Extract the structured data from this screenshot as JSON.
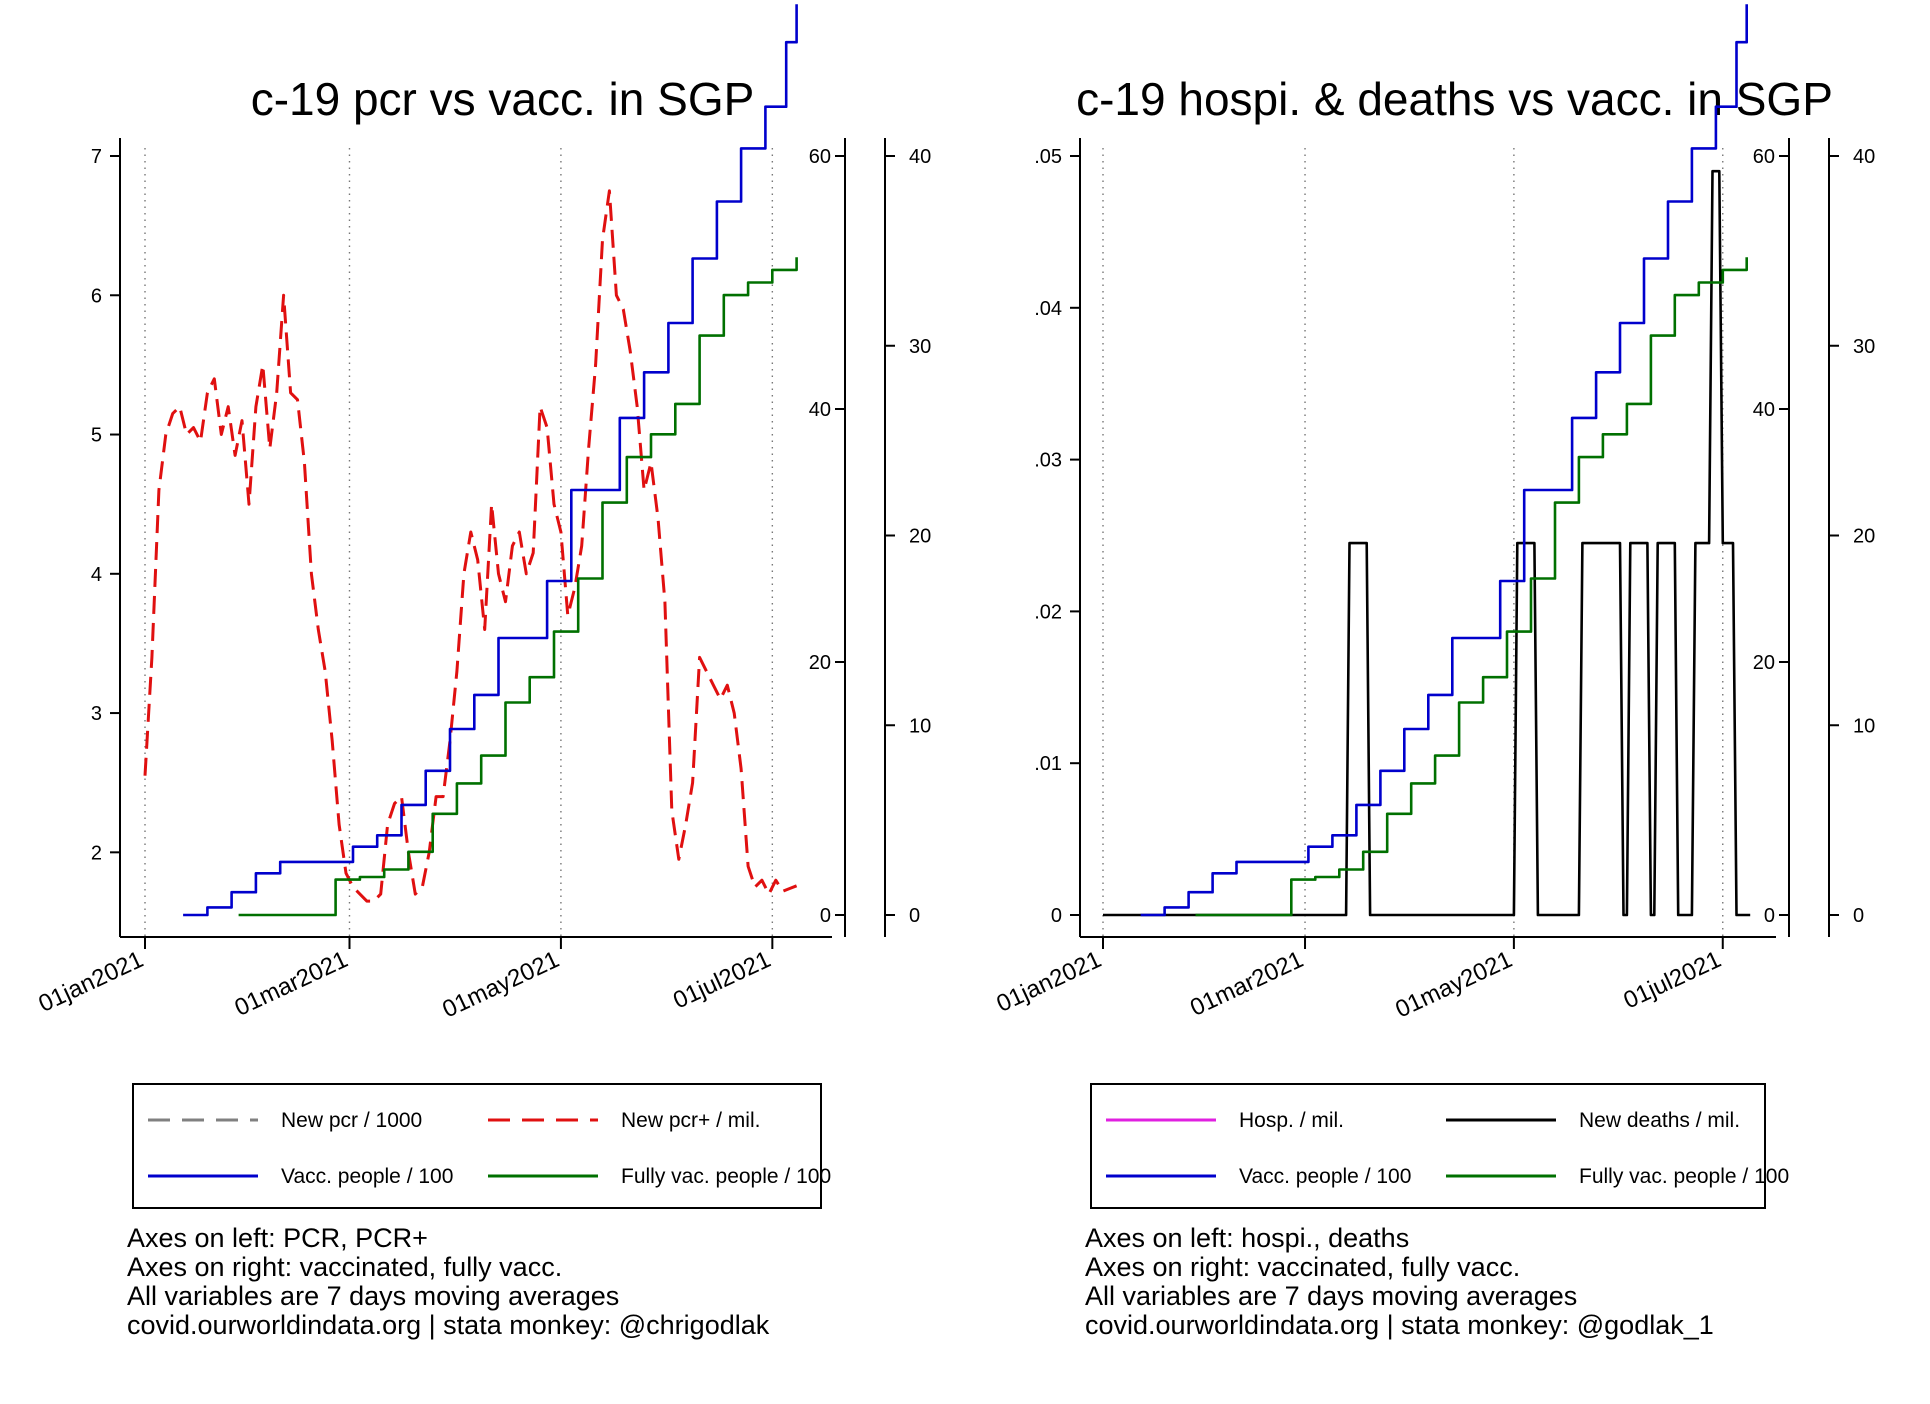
{
  "colors": {
    "pcr": "#808080",
    "pcr_pos": "#e01010",
    "vacc": "#0000cc",
    "fully": "#007000",
    "hosp": "#e020e0",
    "deaths": "#000000"
  },
  "chart_data": [
    {
      "type": "line",
      "title": "c-19 pcr vs vacc. in SGP",
      "x_axis": {
        "type": "date",
        "range": [
          "2021-01-01",
          "2021-07-11"
        ],
        "ticks": [
          "01jan2021",
          "01mar2021",
          "01may2021",
          "01jul2021"
        ],
        "tick_dates": [
          "2021-01-01",
          "2021-03-01",
          "2021-05-01",
          "2021-07-01"
        ],
        "vertical_gridlines": "dotted"
      },
      "y_left": {
        "range": [
          1.55,
          7
        ],
        "ticks": [
          "7",
          "6",
          "5",
          "4",
          "3",
          "2"
        ],
        "tick_values": [
          7,
          6,
          5,
          4,
          3,
          2
        ]
      },
      "y_right_inner": {
        "range": [
          0,
          60
        ],
        "ticks": [
          "60",
          "40",
          "20",
          "0"
        ],
        "tick_values": [
          60,
          40,
          20,
          0
        ]
      },
      "y_right_outer": {
        "range": [
          0,
          40
        ],
        "ticks": [
          "40",
          "30",
          "20",
          "10",
          "0"
        ],
        "tick_values": [
          40,
          30,
          20,
          10,
          0
        ]
      },
      "legend": {
        "placement": "bottom",
        "items": [
          {
            "key": "pcr",
            "label": "New pcr / 1000",
            "style": "dashed"
          },
          {
            "key": "pcr_pos",
            "label": "New pcr+ / mil.",
            "style": "dashed"
          },
          {
            "key": "vacc",
            "label": "Vacc. people / 100",
            "style": "solid"
          },
          {
            "key": "fully",
            "label": "Fully vac. people / 100",
            "style": "solid"
          }
        ]
      },
      "series": [
        {
          "key": "pcr_pos",
          "name": "New pcr+ / mil.",
          "axis": "left",
          "style": "dashed",
          "x": [
            "2021-01-01",
            "2021-01-03",
            "2021-01-05",
            "2021-01-07",
            "2021-01-09",
            "2021-01-11",
            "2021-01-13",
            "2021-01-15",
            "2021-01-17",
            "2021-01-19",
            "2021-01-21",
            "2021-01-23",
            "2021-01-25",
            "2021-01-27",
            "2021-01-29",
            "2021-01-31",
            "2021-02-02",
            "2021-02-04",
            "2021-02-06",
            "2021-02-08",
            "2021-02-10",
            "2021-02-12",
            "2021-02-14",
            "2021-02-16",
            "2021-02-18",
            "2021-02-20",
            "2021-02-22",
            "2021-02-24",
            "2021-02-26",
            "2021-02-28",
            "2021-03-02",
            "2021-03-04",
            "2021-03-06",
            "2021-03-08",
            "2021-03-10",
            "2021-03-12",
            "2021-03-14",
            "2021-03-16",
            "2021-03-18",
            "2021-03-20",
            "2021-03-22",
            "2021-03-24",
            "2021-03-26",
            "2021-03-28",
            "2021-03-30",
            "2021-04-01",
            "2021-04-03",
            "2021-04-05",
            "2021-04-07",
            "2021-04-09",
            "2021-04-11",
            "2021-04-13",
            "2021-04-15",
            "2021-04-17",
            "2021-04-19",
            "2021-04-21",
            "2021-04-23",
            "2021-04-25",
            "2021-04-27",
            "2021-04-29",
            "2021-05-01",
            "2021-05-03",
            "2021-05-05",
            "2021-05-07",
            "2021-05-09",
            "2021-05-11",
            "2021-05-13",
            "2021-05-15",
            "2021-05-17",
            "2021-05-19",
            "2021-05-21",
            "2021-05-23",
            "2021-05-25",
            "2021-05-27",
            "2021-05-29",
            "2021-05-31",
            "2021-06-02",
            "2021-06-04",
            "2021-06-06",
            "2021-06-08",
            "2021-06-10",
            "2021-06-12",
            "2021-06-14",
            "2021-06-16",
            "2021-06-18",
            "2021-06-20",
            "2021-06-22",
            "2021-06-24",
            "2021-06-26",
            "2021-06-28",
            "2021-06-30",
            "2021-07-02",
            "2021-07-04",
            "2021-07-06",
            "2021-07-08"
          ],
          "values": [
            2.55,
            3.4,
            4.6,
            5.0,
            5.15,
            5.2,
            5.0,
            5.05,
            4.95,
            5.3,
            5.4,
            5.0,
            5.2,
            4.85,
            5.1,
            4.5,
            5.2,
            5.5,
            4.9,
            5.3,
            6.0,
            5.3,
            5.25,
            4.8,
            4.0,
            3.6,
            3.3,
            2.8,
            2.2,
            1.85,
            1.75,
            1.7,
            1.65,
            1.65,
            1.7,
            2.2,
            2.35,
            2.4,
            2.0,
            1.7,
            1.75,
            2.0,
            2.4,
            2.4,
            2.8,
            3.3,
            4.0,
            4.3,
            4.1,
            3.6,
            4.5,
            4.0,
            3.8,
            4.2,
            4.3,
            4.0,
            4.15,
            5.2,
            5.05,
            4.5,
            4.3,
            3.7,
            3.9,
            4.2,
            4.9,
            5.5,
            6.4,
            6.75,
            6.0,
            5.9,
            5.6,
            5.2,
            4.6,
            4.8,
            4.4,
            3.8,
            2.3,
            1.95,
            2.2,
            2.5,
            3.4,
            3.3,
            3.2,
            3.1,
            3.2,
            3.0,
            2.6,
            1.9,
            1.75,
            1.8,
            1.7,
            1.8,
            1.72,
            1.74,
            1.76
          ]
        },
        {
          "key": "vacc",
          "name": "Vacc. people / 100",
          "axis": "right_outer",
          "style": "step",
          "x": [
            "2021-01-12",
            "2021-01-19",
            "2021-01-26",
            "2021-02-02",
            "2021-02-09",
            "2021-02-16",
            "2021-02-23",
            "2021-03-02",
            "2021-03-09",
            "2021-03-16",
            "2021-03-23",
            "2021-03-30",
            "2021-04-06",
            "2021-04-13",
            "2021-04-20",
            "2021-04-27",
            "2021-05-04",
            "2021-05-11",
            "2021-05-18",
            "2021-05-25",
            "2021-06-01",
            "2021-06-08",
            "2021-06-15",
            "2021-06-22",
            "2021-06-29",
            "2021-07-05",
            "2021-07-08"
          ],
          "values": [
            0,
            0.4,
            1.2,
            2.2,
            2.8,
            2.8,
            2.8,
            3.6,
            4.2,
            5.8,
            7.6,
            9.8,
            11.6,
            14.6,
            14.6,
            17.6,
            22.4,
            22.4,
            26.2,
            28.6,
            31.2,
            34.6,
            37.6,
            40.4,
            42.6,
            46.0,
            48.0
          ]
        },
        {
          "key": "fully",
          "name": "Fully vac. people / 100",
          "axis": "right_inner",
          "style": "step",
          "x": [
            "2021-01-28",
            "2021-02-04",
            "2021-02-11",
            "2021-02-18",
            "2021-02-25",
            "2021-03-04",
            "2021-03-11",
            "2021-03-18",
            "2021-03-25",
            "2021-04-01",
            "2021-04-08",
            "2021-04-15",
            "2021-04-22",
            "2021-04-29",
            "2021-05-06",
            "2021-05-13",
            "2021-05-20",
            "2021-05-27",
            "2021-06-03",
            "2021-06-10",
            "2021-06-17",
            "2021-06-24",
            "2021-07-01",
            "2021-07-08"
          ],
          "values": [
            0,
            0,
            0,
            0,
            2.8,
            3.0,
            3.6,
            5.0,
            8.0,
            10.4,
            12.6,
            16.8,
            18.8,
            22.4,
            26.6,
            32.6,
            36.2,
            38.0,
            40.4,
            45.8,
            49.0,
            50.0,
            51.0,
            52.0
          ]
        }
      ]
    },
    {
      "type": "line",
      "title": "c-19 hospi. & deaths vs vacc. in SGP",
      "x_axis": {
        "type": "date",
        "range": [
          "2021-01-01",
          "2021-07-11"
        ],
        "ticks": [
          "01jan2021",
          "01mar2021",
          "01may2021",
          "01jul2021"
        ],
        "tick_dates": [
          "2021-01-01",
          "2021-03-01",
          "2021-05-01",
          "2021-07-01"
        ],
        "vertical_gridlines": "dotted"
      },
      "y_left": {
        "range": [
          0,
          0.05
        ],
        "ticks": [
          ".05",
          ".04",
          ".03",
          ".02",
          ".01",
          "0"
        ],
        "tick_values": [
          0.05,
          0.04,
          0.03,
          0.02,
          0.01,
          0
        ]
      },
      "y_right_inner": {
        "range": [
          0,
          60
        ],
        "ticks": [
          "60",
          "40",
          "20",
          "0"
        ],
        "tick_values": [
          60,
          40,
          20,
          0
        ]
      },
      "y_right_outer": {
        "range": [
          0,
          40
        ],
        "ticks": [
          "40",
          "30",
          "20",
          "10",
          "0"
        ],
        "tick_values": [
          40,
          30,
          20,
          10,
          0
        ]
      },
      "legend": {
        "placement": "bottom",
        "items": [
          {
            "key": "hosp",
            "label": "Hosp. / mil.",
            "style": "solid"
          },
          {
            "key": "deaths",
            "label": "New deaths / mil.",
            "style": "solid"
          },
          {
            "key": "vacc",
            "label": "Vacc. people / 100",
            "style": "solid"
          },
          {
            "key": "fully",
            "label": "Fully vac. people / 100",
            "style": "solid"
          }
        ]
      },
      "series": [
        {
          "key": "deaths",
          "name": "New deaths / mil.",
          "axis": "left",
          "style": "solid",
          "x": [
            "2021-01-01",
            "2021-03-13",
            "2021-03-14",
            "2021-03-19",
            "2021-03-20",
            "2021-05-01",
            "2021-05-02",
            "2021-05-07",
            "2021-05-08",
            "2021-05-20",
            "2021-05-21",
            "2021-06-01",
            "2021-06-02",
            "2021-06-03",
            "2021-06-04",
            "2021-06-09",
            "2021-06-10",
            "2021-06-11",
            "2021-06-12",
            "2021-06-17",
            "2021-06-18",
            "2021-06-22",
            "2021-06-23",
            "2021-06-27",
            "2021-06-28",
            "2021-06-30",
            "2021-07-01",
            "2021-07-04",
            "2021-07-05",
            "2021-07-09"
          ],
          "values": [
            0,
            0,
            0.0245,
            0.0245,
            0,
            0,
            0.0245,
            0.0245,
            0,
            0,
            0.0245,
            0.0245,
            0,
            0,
            0.0245,
            0.0245,
            0,
            0,
            0.0245,
            0.0245,
            0,
            0,
            0.0245,
            0.0245,
            0.049,
            0.049,
            0.0245,
            0.0245,
            0,
            0
          ]
        },
        {
          "key": "vacc",
          "name": "Vacc. people / 100",
          "axis": "right_outer",
          "style": "step",
          "x": [
            "2021-01-12",
            "2021-01-19",
            "2021-01-26",
            "2021-02-02",
            "2021-02-09",
            "2021-02-16",
            "2021-02-23",
            "2021-03-02",
            "2021-03-09",
            "2021-03-16",
            "2021-03-23",
            "2021-03-30",
            "2021-04-06",
            "2021-04-13",
            "2021-04-20",
            "2021-04-27",
            "2021-05-04",
            "2021-05-11",
            "2021-05-18",
            "2021-05-25",
            "2021-06-01",
            "2021-06-08",
            "2021-06-15",
            "2021-06-22",
            "2021-06-29",
            "2021-07-05",
            "2021-07-08"
          ],
          "values": [
            0,
            0.4,
            1.2,
            2.2,
            2.8,
            2.8,
            2.8,
            3.6,
            4.2,
            5.8,
            7.6,
            9.8,
            11.6,
            14.6,
            14.6,
            17.6,
            22.4,
            22.4,
            26.2,
            28.6,
            31.2,
            34.6,
            37.6,
            40.4,
            42.6,
            46.0,
            48.0
          ]
        },
        {
          "key": "fully",
          "name": "Fully vac. people / 100",
          "axis": "right_inner",
          "style": "step",
          "x": [
            "2021-01-28",
            "2021-02-04",
            "2021-02-11",
            "2021-02-18",
            "2021-02-25",
            "2021-03-04",
            "2021-03-11",
            "2021-03-18",
            "2021-03-25",
            "2021-04-01",
            "2021-04-08",
            "2021-04-15",
            "2021-04-22",
            "2021-04-29",
            "2021-05-06",
            "2021-05-13",
            "2021-05-20",
            "2021-05-27",
            "2021-06-03",
            "2021-06-10",
            "2021-06-17",
            "2021-06-24",
            "2021-07-01",
            "2021-07-08"
          ],
          "values": [
            0,
            0,
            0,
            0,
            2.8,
            3.0,
            3.6,
            5.0,
            8.0,
            10.4,
            12.6,
            16.8,
            18.8,
            22.4,
            26.6,
            32.6,
            36.2,
            38.0,
            40.4,
            45.8,
            49.0,
            50.0,
            51.0,
            52.0
          ]
        }
      ]
    }
  ],
  "notes": [
    [
      "Axes on left: PCR, PCR+",
      "Axes on right: vaccinated, fully vacc.",
      "All variables are 7 days moving averages",
      "covid.ourworldindata.org | stata monkey: @chrigodlak"
    ],
    [
      "Axes on left: hospi., deaths",
      "Axes on right: vaccinated, fully vacc.",
      "All variables are 7 days moving averages",
      "covid.ourworldindata.org | stata monkey: @godlak_1"
    ]
  ]
}
